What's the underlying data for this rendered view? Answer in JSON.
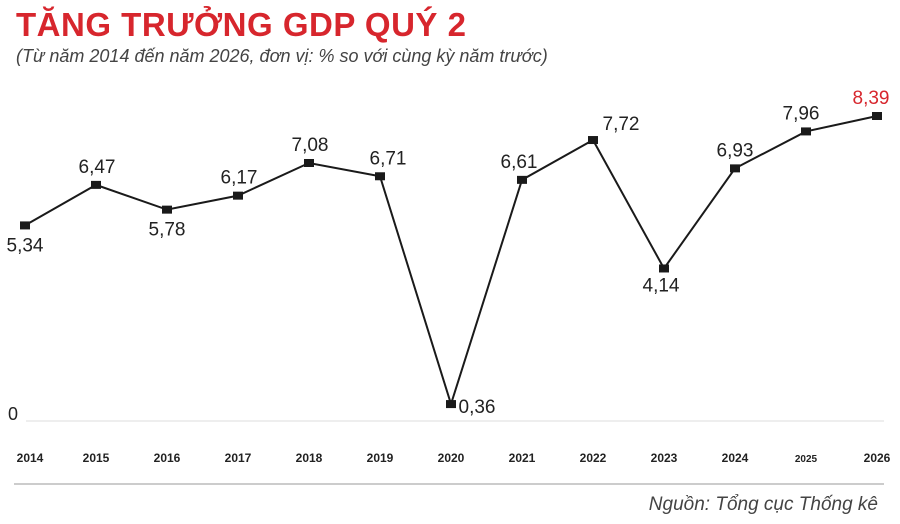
{
  "title": "TĂNG TRƯỞNG GDP QUÝ 2",
  "subtitle": "(Từ năm 2014 đến năm 2026, đơn vị: % so với cùng kỳ năm trước)",
  "source": "Nguồn: Tổng cục Thống kê",
  "colors": {
    "line": "#1a1a1a",
    "highlight": "#d7262d",
    "axis": "#cccccc",
    "text": "#222222"
  },
  "chart_data": {
    "type": "line",
    "title": "TĂNG TRƯỞNG GDP QUÝ 2",
    "categories": [
      "2014",
      "2015",
      "2016",
      "2017",
      "2018",
      "2019",
      "2020",
      "2021",
      "2022",
      "2023",
      "2024",
      "2025",
      "2026"
    ],
    "values": [
      5.34,
      6.47,
      5.78,
      6.17,
      7.08,
      6.71,
      0.36,
      6.61,
      7.72,
      4.14,
      6.93,
      7.96,
      8.39
    ],
    "value_labels": [
      "5,34",
      "6,47",
      "5,78",
      "6,17",
      "7,08",
      "6,71",
      "0,36",
      "6,61",
      "7,72",
      "4,14",
      "6,93",
      "7,96",
      "8,39"
    ],
    "y_tick_label": "0",
    "ylim": [
      0,
      8.39
    ],
    "highlight_index": 12,
    "grid": false
  }
}
